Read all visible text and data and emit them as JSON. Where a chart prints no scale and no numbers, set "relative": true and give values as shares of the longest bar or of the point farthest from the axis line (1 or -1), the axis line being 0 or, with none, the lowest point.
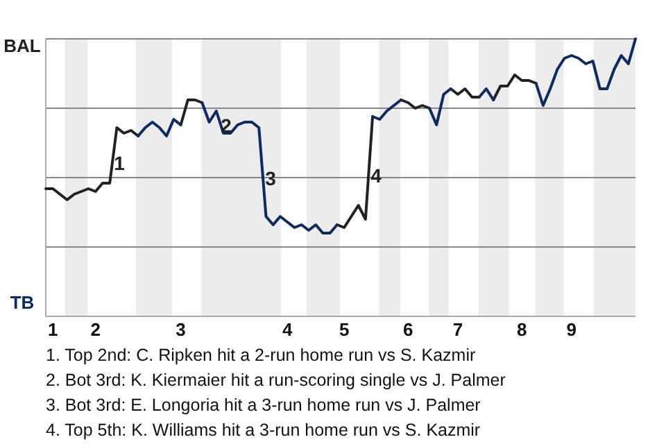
{
  "chart_data": {
    "type": "line",
    "relative": true,
    "categories": [
      null,
      "1",
      null,
      null,
      null,
      null,
      null,
      "2",
      null,
      null,
      null,
      null,
      null,
      null,
      null,
      null,
      null,
      null,
      null,
      "3",
      null,
      null,
      null,
      null,
      null,
      null,
      null,
      null,
      null,
      null,
      null,
      null,
      null,
      null,
      "4",
      null,
      null,
      null,
      null,
      null,
      null,
      null,
      "5",
      null,
      null,
      null,
      null,
      null,
      null,
      null,
      null,
      "6",
      null,
      null,
      null,
      null,
      null,
      null,
      "7",
      null,
      null,
      null,
      null,
      null,
      null,
      null,
      null,
      "8",
      null,
      null,
      null,
      null,
      null,
      null,
      "9",
      null,
      null,
      null,
      null,
      null,
      null,
      null,
      null,
      null
    ],
    "series": [
      {
        "color": "#222222",
        "values": [
          0.46,
          0.46,
          0.44,
          0.42,
          0.44,
          0.45,
          0.46,
          0.45,
          0.48,
          0.48,
          0.68,
          0.66,
          0.67,
          0.65,
          null,
          null,
          null,
          null,
          null,
          0.69,
          0.78,
          0.78,
          0.77,
          null,
          null,
          null,
          null,
          null,
          null,
          null,
          null,
          null,
          null,
          null,
          null,
          null,
          null,
          null,
          null,
          null,
          null,
          0.33,
          0.32,
          0.36,
          0.4,
          0.35,
          0.72,
          null,
          null,
          null,
          0.78,
          0.77,
          0.75,
          0.76,
          0.75,
          null,
          null,
          0.82,
          0.8,
          0.82,
          0.79,
          0.79,
          null,
          0.78,
          0.83,
          0.83,
          0.87,
          0.85,
          0.85,
          0.84,
          null,
          null,
          null,
          null,
          null,
          null,
          null,
          null,
          null,
          null,
          null,
          null,
          null,
          null
        ]
      },
      {
        "color": "#0d2b5e",
        "values": [
          null,
          null,
          null,
          null,
          null,
          null,
          null,
          null,
          null,
          null,
          null,
          null,
          null,
          0.65,
          0.68,
          0.7,
          0.68,
          0.65,
          0.71,
          0.69,
          null,
          null,
          0.77,
          0.7,
          0.74,
          0.66,
          0.66,
          0.69,
          0.7,
          0.7,
          0.68,
          0.36,
          0.33,
          0.36,
          0.34,
          0.32,
          0.33,
          0.31,
          0.33,
          0.3,
          0.3,
          0.33,
          null,
          null,
          null,
          null,
          0.72,
          0.71,
          0.74,
          0.76,
          0.78,
          null,
          null,
          null,
          0.75,
          0.69,
          0.8,
          0.82,
          null,
          null,
          null,
          0.79,
          0.82,
          0.78,
          null,
          null,
          null,
          null,
          null,
          0.84,
          0.76,
          0.82,
          0.89,
          0.93,
          0.94,
          0.93,
          0.91,
          0.92,
          0.82,
          0.82,
          0.89,
          0.94,
          0.91,
          1.0
        ]
      }
    ],
    "ref_lines": [
      {
        "axis": "y",
        "value": 0.25,
        "color": "#888888"
      },
      {
        "axis": "y",
        "value": 0.5,
        "color": "#888888"
      },
      {
        "axis": "y",
        "value": 0.75,
        "color": "#888888"
      },
      {
        "axis": "y",
        "value": 1,
        "color": "#888888"
      }
    ],
    "annotations": [
      "BAL",
      "TB",
      "1",
      "2",
      "3",
      "4",
      "1. Top 2nd: C. Ripken hit a 2-run home run vs S. Kazmir",
      "2. Bot 3rd: K. Kiermaier hit a run-scoring single vs J. Palmer",
      "3. Bot 3rd: E. Longoria hit a 3-run home run vs J. Palmer",
      "4. Top 5th: K. Williams hit a 3-run home run vs S. Kazmir"
    ]
  }
}
